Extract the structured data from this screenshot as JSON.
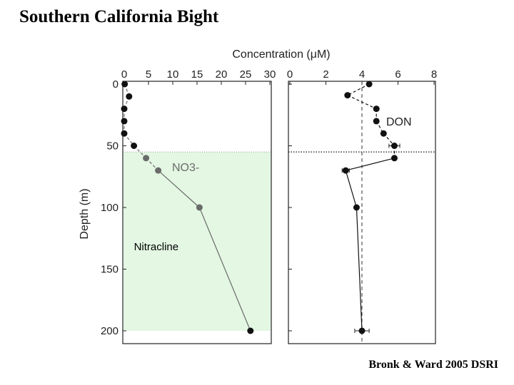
{
  "slide": {
    "title": "Southern California Bight",
    "citation": "Bronk & Ward 2005 DSRI"
  },
  "colors": {
    "nitracline_fill": "#e3f7e3",
    "no3_series": "#6b6b6b",
    "don_series": "#111111",
    "axis": "#222222"
  },
  "chart_data": {
    "type": "scatter",
    "shared_xlabel": "Concentration (μM)",
    "ylabel": "Depth (m)",
    "y_inverted": true,
    "ylim": [
      0,
      200
    ],
    "yticks": [
      0,
      50,
      100,
      150,
      200
    ],
    "panels": [
      {
        "series_label": "NO3-",
        "xlim": [
          0,
          30
        ],
        "xticks": [
          0,
          5,
          10,
          15,
          20,
          25,
          30
        ],
        "nitracline": {
          "label": "Nitracline",
          "top_depth": 55,
          "bottom_depth": 200
        },
        "points": [
          {
            "x": 0.1,
            "y": 0
          },
          {
            "x": 1,
            "y": 10
          },
          {
            "x": 0,
            "y": 20
          },
          {
            "x": 0,
            "y": 30
          },
          {
            "x": 0,
            "y": 40
          },
          {
            "x": 2,
            "y": 50
          },
          {
            "x": 4.5,
            "y": 60
          },
          {
            "x": 7,
            "y": 70
          },
          {
            "x": 15.5,
            "y": 100
          },
          {
            "x": 26,
            "y": 200
          }
        ]
      },
      {
        "series_label": "DON",
        "xlim": [
          0,
          8
        ],
        "xticks": [
          0,
          2,
          4,
          6,
          8
        ],
        "dashed_reference_x": 4,
        "dotted_depth": 55,
        "points": [
          {
            "x": 4.4,
            "y": 0
          },
          {
            "x": 3.2,
            "y": 9
          },
          {
            "x": 4.8,
            "y": 20
          },
          {
            "x": 4.8,
            "y": 30
          },
          {
            "x": 5.2,
            "y": 40
          },
          {
            "x": 5.8,
            "y": 50,
            "err": 0.3
          },
          {
            "x": 5.8,
            "y": 60
          },
          {
            "x": 3.1,
            "y": 70,
            "err": 0.2
          },
          {
            "x": 3.7,
            "y": 100
          },
          {
            "x": 4,
            "y": 200,
            "err": 0.4
          }
        ]
      }
    ]
  }
}
